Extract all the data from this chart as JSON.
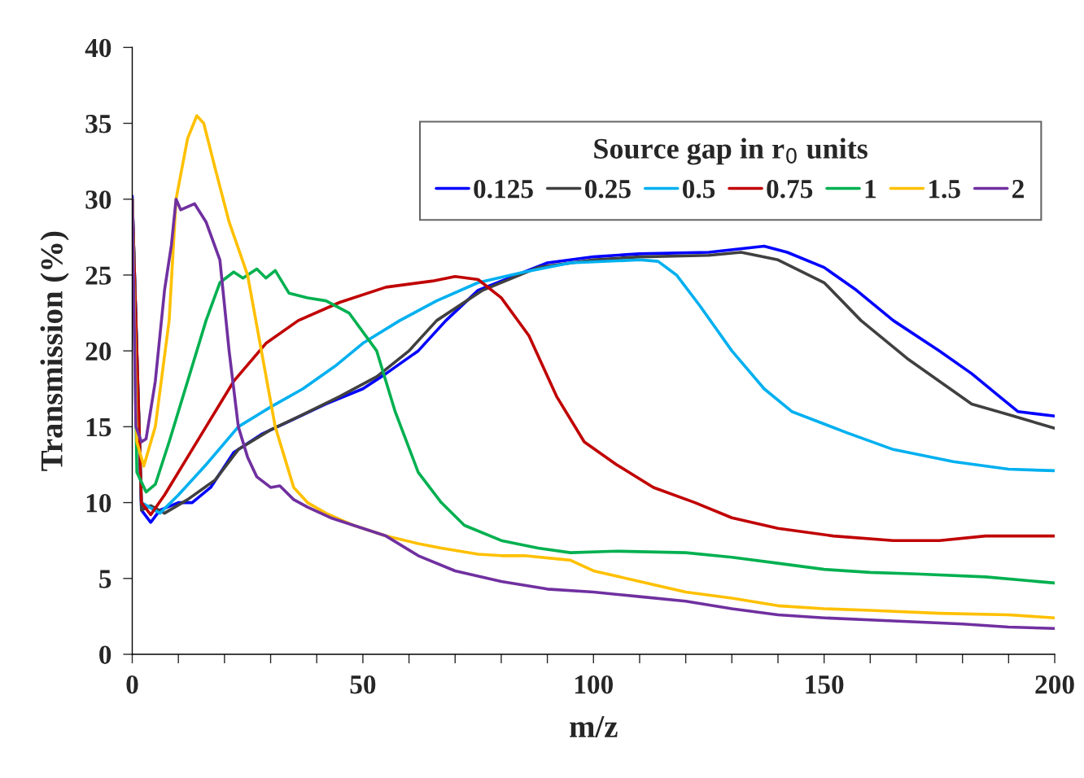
{
  "chart_data": {
    "type": "line",
    "xlabel": "m/z",
    "ylabel": "Transmission (%)",
    "legend_title": "Source gap in r$_{0}$ units",
    "xlim": [
      0,
      200
    ],
    "ylim": [
      0,
      40
    ],
    "xticks": [
      0,
      {
        "value": 10,
        "label": null
      },
      {
        "value": 20,
        "label": null
      },
      {
        "value": 30,
        "label": null
      },
      {
        "value": 40,
        "label": null
      },
      50,
      {
        "value": 60,
        "label": null
      },
      {
        "value": 70,
        "label": null
      },
      {
        "value": 80,
        "label": null
      },
      {
        "value": 90,
        "label": null
      },
      100,
      {
        "value": 110,
        "label": null
      },
      {
        "value": 120,
        "label": null
      },
      {
        "value": 130,
        "label": null
      },
      {
        "value": 140,
        "label": null
      },
      150,
      {
        "value": 160,
        "label": null
      },
      {
        "value": 170,
        "label": null
      },
      {
        "value": 180,
        "label": null
      },
      {
        "value": 190,
        "label": null
      },
      200
    ],
    "yticks": [
      0,
      5,
      10,
      15,
      20,
      25,
      30,
      35,
      40
    ],
    "grid": false,
    "legend": "top right",
    "marker": "none",
    "line_style": "solid",
    "series": [
      {
        "name": "0.125",
        "color": "#0000ff",
        "x": [
          0,
          2,
          4,
          6,
          10,
          13,
          17,
          22,
          28,
          35,
          42,
          50,
          55,
          62,
          68,
          75,
          90,
          100,
          110,
          125,
          137,
          142,
          150,
          157,
          165,
          175,
          182,
          188,
          192,
          200
        ],
        "values": [
          30.2,
          9.5,
          8.7,
          9.5,
          10,
          10,
          11,
          13.3,
          14.5,
          15.5,
          16.5,
          17.5,
          18.5,
          20,
          22,
          24,
          25.8,
          26.2,
          26.4,
          26.5,
          26.9,
          26.5,
          25.5,
          24,
          22,
          20,
          18.5,
          17,
          16,
          15.7
        ]
      },
      {
        "name": "0.25",
        "color": "#404040",
        "x": [
          0,
          2,
          4,
          7,
          12,
          18,
          23,
          30,
          37,
          45,
          53,
          60,
          66,
          76,
          88,
          100,
          110,
          125,
          132,
          140,
          150,
          158,
          168,
          175,
          182,
          190,
          200
        ],
        "values": [
          30,
          9.5,
          9.8,
          9.3,
          10.2,
          11.5,
          13.5,
          14.8,
          15.8,
          17,
          18.3,
          20,
          22,
          24,
          25.5,
          26,
          26.2,
          26.3,
          26.5,
          26,
          24.5,
          22,
          19.5,
          18,
          16.5,
          15.8,
          14.9
        ]
      },
      {
        "name": "0.5",
        "color": "#00b0f0",
        "x": [
          0,
          2,
          6,
          10,
          16,
          23,
          30,
          37,
          44,
          50,
          58,
          66,
          75,
          85,
          95,
          110,
          114,
          118,
          123,
          130,
          137,
          143,
          155,
          165,
          178,
          190,
          200
        ],
        "values": [
          30,
          10,
          9.3,
          10.5,
          12.5,
          15,
          16.3,
          17.5,
          19,
          20.5,
          22,
          23.3,
          24.5,
          25.2,
          25.8,
          26,
          25.9,
          25,
          23,
          20,
          17.5,
          16,
          14.6,
          13.5,
          12.7,
          12.2,
          12.1
        ]
      },
      {
        "name": "0.75",
        "color": "#c00000",
        "x": [
          0,
          2,
          4,
          7,
          12,
          16,
          22,
          29,
          36,
          45,
          55,
          65,
          70,
          75,
          80,
          86,
          92,
          98,
          105,
          113,
          122,
          130,
          140,
          152,
          165,
          175,
          185,
          200
        ],
        "values": [
          30,
          10,
          9.2,
          10.5,
          13,
          15,
          18,
          20.5,
          22,
          23.2,
          24.2,
          24.6,
          24.9,
          24.7,
          23.5,
          21,
          17,
          14,
          12.5,
          11,
          10,
          9,
          8.3,
          7.8,
          7.5,
          7.5,
          7.8,
          7.8
        ]
      },
      {
        "name": "1",
        "color": "#00b050",
        "x": [
          0,
          1,
          3,
          5,
          8,
          12,
          16,
          19,
          22,
          24,
          27,
          29,
          31,
          34,
          38,
          42,
          47,
          53,
          57,
          62,
          67,
          72,
          80,
          88,
          95,
          105,
          120,
          130,
          140,
          150,
          160,
          170,
          185,
          200
        ],
        "values": [
          30,
          12,
          10.7,
          11.2,
          14,
          18,
          22,
          24.5,
          25.2,
          24.8,
          25.4,
          24.8,
          25.3,
          23.8,
          23.5,
          23.3,
          22.5,
          20,
          16,
          12,
          10,
          8.5,
          7.5,
          7,
          6.7,
          6.8,
          6.7,
          6.4,
          6,
          5.6,
          5.4,
          5.3,
          5.1,
          4.7
        ]
      },
      {
        "name": "1.5",
        "color": "#ffc000",
        "x": [
          0,
          1,
          2.5,
          5,
          8,
          9.5,
          12,
          14,
          15.5,
          18,
          21,
          25,
          28,
          31,
          33,
          35,
          38,
          42,
          48,
          55,
          62,
          67,
          75,
          80,
          85,
          95,
          100,
          110,
          120,
          130,
          140,
          150,
          160,
          175,
          190,
          200
        ],
        "values": [
          30,
          14,
          12.4,
          15,
          22,
          30,
          34,
          35.5,
          35,
          32,
          28.5,
          25,
          20,
          15,
          13,
          11,
          10,
          9.3,
          8.5,
          7.8,
          7.3,
          7,
          6.6,
          6.5,
          6.5,
          6.2,
          5.5,
          4.8,
          4.1,
          3.7,
          3.2,
          3,
          2.9,
          2.7,
          2.6,
          2.4
        ]
      },
      {
        "name": "2",
        "color": "#7030a0",
        "x": [
          0,
          0.8,
          2,
          3,
          5,
          7,
          8.5,
          9.5,
          10.5,
          12,
          13.5,
          16,
          19,
          21,
          23,
          25,
          27,
          30,
          32,
          35,
          38,
          43,
          50,
          55,
          62,
          70,
          80,
          90,
          100,
          110,
          120,
          130,
          140,
          150,
          165,
          180,
          190,
          200
        ],
        "values": [
          30,
          15,
          14,
          14.2,
          18,
          24,
          27,
          30,
          29.3,
          29.5,
          29.7,
          28.5,
          26,
          20,
          15,
          13,
          11.7,
          11,
          11.1,
          10.2,
          9.7,
          9,
          8.3,
          7.8,
          6.5,
          5.5,
          4.8,
          4.3,
          4.1,
          3.8,
          3.5,
          3,
          2.6,
          2.4,
          2.2,
          2,
          1.8,
          1.7
        ]
      }
    ]
  }
}
